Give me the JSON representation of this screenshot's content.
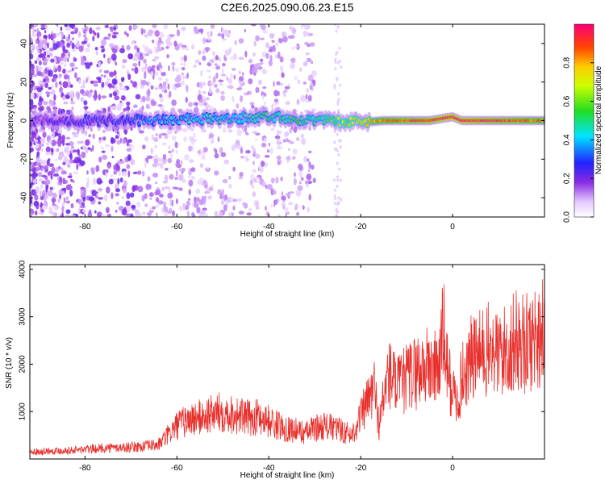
{
  "title": "C2E6.2025.090.06.23.E15",
  "chart_data": [
    {
      "type": "heatmap",
      "xlabel": "Height of straight line (km)",
      "ylabel": "Frequency (Hz)",
      "xlim": [
        -92,
        20
      ],
      "ylim": [
        -50,
        50
      ],
      "xticks": [
        "-80",
        "-60",
        "-40",
        "-20",
        "0"
      ],
      "yticks": [
        "-40",
        "-20",
        "0",
        "20",
        "40"
      ],
      "colorbar": {
        "label": "Normalized spectral amplitude",
        "range": [
          0,
          1
        ],
        "ticks": [
          "0.0",
          "0.2",
          "0.4",
          "0.6",
          "0.8"
        ]
      },
      "ridge": {
        "freq_hz_at_height_km": [
          [
            -90,
            0
          ],
          [
            -70,
            0
          ],
          [
            -50,
            1
          ],
          [
            -40,
            2
          ],
          [
            -30,
            0
          ],
          [
            -20,
            -1
          ],
          [
            -15,
            0
          ],
          [
            -5,
            0
          ],
          [
            0,
            2
          ],
          [
            2,
            0
          ],
          [
            20,
            0
          ]
        ],
        "amplitude_at_height_km": [
          [
            -90,
            0.2
          ],
          [
            -70,
            0.3
          ],
          [
            -60,
            0.4
          ],
          [
            -45,
            0.45
          ],
          [
            -30,
            0.5
          ],
          [
            -22,
            0.65
          ],
          [
            -15,
            0.85
          ],
          [
            0,
            1.0
          ],
          [
            20,
            0.85
          ]
        ]
      }
    },
    {
      "type": "line",
      "xlabel": "Height of straight line (km)",
      "ylabel": "SNR (10 * v/v)",
      "xlim": [
        -92,
        20
      ],
      "ylim": [
        0,
        4100
      ],
      "xticks": [
        "-80",
        "-60",
        "-40",
        "-20",
        "0"
      ],
      "yticks": [
        "1000",
        "2000",
        "3000",
        "4000"
      ],
      "series": [
        {
          "color": "#e8302c",
          "x": [
            -92,
            -88,
            -84,
            -80,
            -76,
            -72,
            -68,
            -64,
            -62,
            -60,
            -58,
            -56,
            -54,
            -52,
            -50,
            -48,
            -46,
            -44,
            -42,
            -40,
            -38,
            -36,
            -34,
            -32,
            -30,
            -28,
            -26,
            -24,
            -22,
            -20,
            -18,
            -17,
            -16,
            -15,
            -14,
            -13,
            -12,
            -10,
            -8,
            -6,
            -4,
            -3,
            -2,
            -1,
            0,
            1,
            2,
            4,
            6,
            8,
            10,
            12,
            14,
            16,
            18,
            20
          ],
          "y": [
            150,
            170,
            180,
            200,
            230,
            240,
            260,
            300,
            500,
            700,
            800,
            850,
            900,
            950,
            1000,
            950,
            900,
            850,
            900,
            800,
            700,
            650,
            600,
            550,
            650,
            700,
            650,
            600,
            500,
            900,
            1300,
            1500,
            700,
            1300,
            1800,
            1700,
            1500,
            1700,
            1850,
            1950,
            1900,
            2000,
            2700,
            1800,
            1400,
            1200,
            1700,
            2100,
            2200,
            2300,
            2200,
            2300,
            2500,
            2400,
            2600,
            2700
          ]
        }
      ]
    }
  ]
}
